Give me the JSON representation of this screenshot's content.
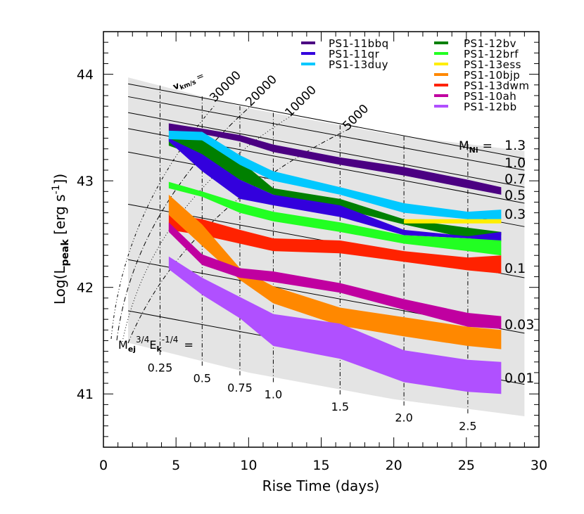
{
  "chart_data": {
    "type": "area",
    "xlabel": "Rise Time (days)",
    "ylabel_parts": {
      "main": "Log(L",
      "sub": "peak",
      "rest": " [erg s",
      "sup": "-1",
      "end": "])"
    },
    "xlim": [
      0,
      30
    ],
    "ylim": [
      40.5,
      44.4
    ],
    "xticks": [
      "0",
      "5",
      "10",
      "15",
      "20",
      "25",
      "30"
    ],
    "yticks": [
      "41",
      "42",
      "43",
      "44"
    ],
    "grid": false,
    "legend_placement": "top-right",
    "model_region": {
      "color": "#e4e4e4",
      "upper": [
        [
          1.7,
          43.97
        ],
        [
          10,
          43.68
        ],
        [
          20,
          43.43
        ],
        [
          29,
          43.28
        ]
      ],
      "lower": [
        [
          1.7,
          41.48
        ],
        [
          10,
          41.2
        ],
        [
          20,
          40.95
        ],
        [
          29,
          40.79
        ]
      ]
    },
    "mni_label_prefix": {
      "main": "M",
      "sub": "Ni",
      "eq": "="
    },
    "mni_lines": [
      {
        "label": "1.3",
        "y_start": 43.91,
        "y_end": 43.21
      },
      {
        "label": "1.0",
        "y_start": 43.79,
        "y_end": 43.1
      },
      {
        "label": "0.7",
        "y_start": 43.64,
        "y_end": 42.94
      },
      {
        "label": "0.5",
        "y_start": 43.49,
        "y_end": 42.79
      },
      {
        "label": "0.3",
        "y_start": 43.27,
        "y_end": 42.57
      },
      {
        "label": "0.1",
        "y_start": 42.78,
        "y_end": 42.09
      },
      {
        "label": "0.03",
        "y_start": 42.26,
        "y_end": 41.57
      },
      {
        "label": "0.01",
        "y_start": 41.78,
        "y_end": 41.09
      }
    ],
    "mej_label": {
      "m": "M",
      "msub": "ej",
      "msup": "3/4",
      "e": "E",
      "esub": "k",
      "esup": "-1/4",
      "eq": "="
    },
    "mej_lines": [
      {
        "label": "0.25",
        "x": 3.9
      },
      {
        "label": "0.5",
        "x": 6.8
      },
      {
        "label": "0.75",
        "x": 9.4
      },
      {
        "label": "1.0",
        "x": 11.7
      },
      {
        "label": "1.5",
        "x": 16.3
      },
      {
        "label": "2.0",
        "x": 20.7
      },
      {
        "label": "2.5",
        "x": 25.1
      }
    ],
    "velocity_label": {
      "v": "v",
      "sub": "km/s",
      "eq": "="
    },
    "velocity_curves": [
      "30000",
      "20000",
      "10000",
      "5000"
    ],
    "series": [
      {
        "name": "PS1-11bbq",
        "color": "#4b0082",
        "x": [
          4.5,
          6.8,
          9.4,
          11.7,
          16.3,
          20.7,
          25.1,
          27.4
        ],
        "upper": [
          43.54,
          43.49,
          43.43,
          43.34,
          43.22,
          43.13,
          43.01,
          42.94
        ],
        "lower": [
          43.47,
          43.44,
          43.37,
          43.27,
          43.15,
          43.05,
          42.93,
          42.87
        ]
      },
      {
        "name": "PS1-12bv",
        "color": "#008000",
        "x": [
          4.5,
          6.8,
          9.4,
          11.7,
          16.3,
          20.7,
          25.1,
          27.4
        ],
        "upper": [
          43.42,
          43.38,
          43.19,
          42.93,
          42.83,
          42.64,
          42.56,
          42.52
        ],
        "lower": [
          43.33,
          43.22,
          43.01,
          42.87,
          42.74,
          42.59,
          42.46,
          42.49
        ]
      },
      {
        "name": "PS1-11qr",
        "color": "#3300dd",
        "x": [
          4.5,
          6.8,
          9.4,
          11.7,
          16.3,
          20.7,
          25.1,
          27.4
        ],
        "upper": [
          43.4,
          43.25,
          43.01,
          42.87,
          42.77,
          42.54,
          42.48,
          42.52
        ],
        "lower": [
          43.37,
          43.09,
          42.83,
          42.77,
          42.66,
          42.49,
          42.46,
          42.43
        ]
      },
      {
        "name": "PS1-13duy",
        "color": "#00c8ff",
        "x": [
          4.5,
          6.8,
          9.4,
          11.7,
          16.3,
          20.7,
          25.1,
          27.4
        ],
        "upper": [
          43.47,
          43.46,
          43.24,
          43.09,
          42.94,
          42.79,
          42.71,
          42.73
        ],
        "lower": [
          43.39,
          43.38,
          43.15,
          43.0,
          42.87,
          42.7,
          42.64,
          42.64
        ]
      },
      {
        "name": "PS1-12brf",
        "color": "#22ff22",
        "x": [
          4.5,
          6.8,
          9.4,
          11.7,
          16.3,
          20.7,
          25.1,
          27.4
        ],
        "upper": [
          42.99,
          42.9,
          42.79,
          42.71,
          42.61,
          42.49,
          42.46,
          42.44
        ],
        "lower": [
          42.93,
          42.85,
          42.7,
          42.62,
          42.52,
          42.41,
          42.34,
          42.3
        ]
      },
      {
        "name": "PS1-13ess",
        "color": "#ffee00",
        "x": [
          20.7,
          27.4
        ],
        "upper": [
          42.64,
          42.64
        ],
        "lower": [
          42.6,
          42.6
        ]
      },
      {
        "name": "PS1-13dwm",
        "color": "#ff2200",
        "x": [
          4.5,
          6.8,
          9.4,
          11.7,
          16.3,
          20.7,
          25.1,
          27.4
        ],
        "upper": [
          42.69,
          42.64,
          42.54,
          42.46,
          42.44,
          42.34,
          42.28,
          42.3
        ],
        "lower": [
          42.54,
          42.49,
          42.41,
          42.34,
          42.32,
          42.24,
          42.16,
          42.13
        ]
      },
      {
        "name": "PS1-10bjp",
        "color": "#ff8800",
        "x": [
          4.5,
          6.8,
          9.4,
          11.7,
          16.3,
          20.7,
          25.1,
          27.4
        ],
        "upper": [
          42.87,
          42.59,
          42.18,
          42.01,
          41.81,
          41.72,
          41.63,
          41.6
        ],
        "lower": [
          42.68,
          42.39,
          42.07,
          41.85,
          41.64,
          41.54,
          41.45,
          41.42
        ]
      },
      {
        "name": "PS1-10ah",
        "color": "#c000a0",
        "x": [
          4.5,
          6.8,
          9.4,
          11.7,
          16.3,
          20.7,
          25.1,
          27.4
        ],
        "upper": [
          42.61,
          42.31,
          42.18,
          42.15,
          42.04,
          41.89,
          41.76,
          41.73
        ],
        "lower": [
          42.52,
          42.21,
          42.09,
          42.05,
          41.95,
          41.79,
          41.63,
          41.61
        ]
      },
      {
        "name": "PS1-12bb",
        "color": "#b050ff",
        "x": [
          4.5,
          6.8,
          9.4,
          11.7,
          16.3,
          20.7,
          25.1,
          27.4
        ],
        "upper": [
          42.29,
          42.09,
          41.91,
          41.75,
          41.66,
          41.41,
          41.32,
          41.3
        ],
        "lower": [
          42.17,
          41.93,
          41.71,
          41.45,
          41.33,
          41.11,
          41.02,
          41.0
        ]
      }
    ],
    "legend_columns": [
      [
        "PS1-11bbq",
        "PS1-11qr",
        "PS1-13duy"
      ],
      [
        "PS1-12bv",
        "PS1-12brf",
        "PS1-13ess",
        "PS1-10bjp",
        "PS1-13dwm",
        "PS1-10ah",
        "PS1-12bb"
      ]
    ]
  }
}
